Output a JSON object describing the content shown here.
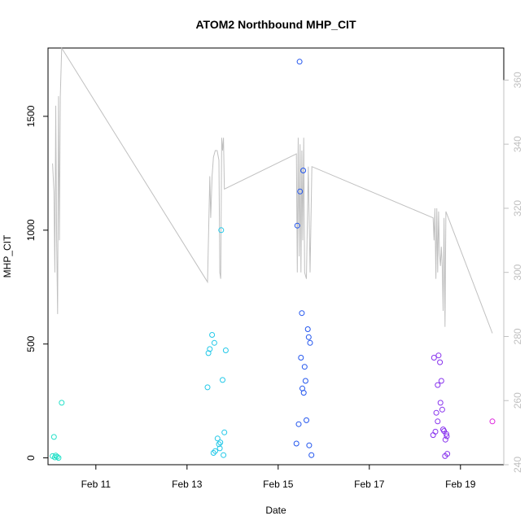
{
  "chart_data": {
    "type": "scatter",
    "title": "ATOM2 Northbound MHP_CIT",
    "xlabel": "Date",
    "ylabel": "MHP_CIT",
    "x_ticks": [
      "Feb 11",
      "Feb 13",
      "Feb 15",
      "Feb 17",
      "Feb 19"
    ],
    "x_tick_days": [
      11,
      13,
      15,
      17,
      19
    ],
    "xlim": [
      9.95,
      19.95
    ],
    "ylim": [
      -30,
      1800
    ],
    "y_ticks": [
      0,
      500,
      1000,
      1500
    ],
    "y2lim": [
      240,
      370
    ],
    "y2_ticks": [
      240,
      260,
      280,
      300,
      320,
      340,
      360
    ],
    "y2_color": "#c0c0c0",
    "grid": false,
    "legend": "none",
    "series": [
      {
        "color": "#22e0c8",
        "points": [
          {
            "x": 10.05,
            "y": 8
          },
          {
            "x": 10.08,
            "y": 92
          },
          {
            "x": 10.1,
            "y": 2
          },
          {
            "x": 10.12,
            "y": 10
          },
          {
            "x": 10.15,
            "y": 5
          },
          {
            "x": 10.18,
            "y": 0
          },
          {
            "x": 10.25,
            "y": 242
          }
        ]
      },
      {
        "color": "#22c8e8",
        "points": [
          {
            "x": 13.45,
            "y": 310
          },
          {
            "x": 13.47,
            "y": 460
          },
          {
            "x": 13.5,
            "y": 478
          },
          {
            "x": 13.55,
            "y": 540
          },
          {
            "x": 13.6,
            "y": 505
          },
          {
            "x": 13.58,
            "y": 22
          },
          {
            "x": 13.62,
            "y": 30
          },
          {
            "x": 13.67,
            "y": 85
          },
          {
            "x": 13.7,
            "y": 60
          },
          {
            "x": 13.72,
            "y": 42
          },
          {
            "x": 13.75,
            "y": 1000
          },
          {
            "x": 13.78,
            "y": 342
          },
          {
            "x": 13.8,
            "y": 12
          },
          {
            "x": 13.82,
            "y": 112
          },
          {
            "x": 13.85,
            "y": 472
          },
          {
            "x": 13.73,
            "y": 68
          }
        ]
      },
      {
        "color": "#2255ee",
        "points": [
          {
            "x": 15.4,
            "y": 63
          },
          {
            "x": 15.42,
            "y": 1020
          },
          {
            "x": 15.45,
            "y": 148
          },
          {
            "x": 15.47,
            "y": 1740
          },
          {
            "x": 15.48,
            "y": 1170
          },
          {
            "x": 15.5,
            "y": 440
          },
          {
            "x": 15.52,
            "y": 636
          },
          {
            "x": 15.53,
            "y": 305
          },
          {
            "x": 15.55,
            "y": 1262
          },
          {
            "x": 15.56,
            "y": 286
          },
          {
            "x": 15.58,
            "y": 400
          },
          {
            "x": 15.6,
            "y": 338
          },
          {
            "x": 15.62,
            "y": 165
          },
          {
            "x": 15.65,
            "y": 565
          },
          {
            "x": 15.67,
            "y": 530
          },
          {
            "x": 15.7,
            "y": 505
          },
          {
            "x": 15.68,
            "y": 55
          },
          {
            "x": 15.73,
            "y": 12
          }
        ]
      },
      {
        "color": "#8833ee",
        "points": [
          {
            "x": 18.4,
            "y": 100
          },
          {
            "x": 18.42,
            "y": 440
          },
          {
            "x": 18.45,
            "y": 115
          },
          {
            "x": 18.47,
            "y": 198
          },
          {
            "x": 18.5,
            "y": 320
          },
          {
            "x": 18.52,
            "y": 450
          },
          {
            "x": 18.5,
            "y": 160
          },
          {
            "x": 18.55,
            "y": 420
          },
          {
            "x": 18.56,
            "y": 242
          },
          {
            "x": 18.58,
            "y": 338
          },
          {
            "x": 18.6,
            "y": 212
          },
          {
            "x": 18.62,
            "y": 125
          },
          {
            "x": 18.64,
            "y": 118
          },
          {
            "x": 18.66,
            "y": 8
          },
          {
            "x": 18.67,
            "y": 80
          },
          {
            "x": 18.69,
            "y": 105
          },
          {
            "x": 18.71,
            "y": 18
          },
          {
            "x": 18.7,
            "y": 95
          }
        ]
      },
      {
        "color": "#dd22dd",
        "points": [
          {
            "x": 19.7,
            "y": 160
          }
        ]
      }
    ],
    "line_series": {
      "axis": "right",
      "color": "#c0c0c0",
      "points": [
        {
          "x": 10.05,
          "y": 334
        },
        {
          "x": 10.08,
          "y": 325
        },
        {
          "x": 10.1,
          "y": 300
        },
        {
          "x": 10.12,
          "y": 352
        },
        {
          "x": 10.14,
          "y": 310
        },
        {
          "x": 10.16,
          "y": 287
        },
        {
          "x": 10.18,
          "y": 355
        },
        {
          "x": 10.2,
          "y": 310
        },
        {
          "x": 10.22,
          "y": 355
        },
        {
          "x": 10.25,
          "y": 370
        },
        {
          "x": 13.45,
          "y": 297
        },
        {
          "x": 13.5,
          "y": 330
        },
        {
          "x": 13.52,
          "y": 317
        },
        {
          "x": 13.55,
          "y": 330
        },
        {
          "x": 13.58,
          "y": 336
        },
        {
          "x": 13.62,
          "y": 338
        },
        {
          "x": 13.66,
          "y": 338
        },
        {
          "x": 13.7,
          "y": 335
        },
        {
          "x": 13.72,
          "y": 300
        },
        {
          "x": 13.74,
          "y": 298
        },
        {
          "x": 13.76,
          "y": 342
        },
        {
          "x": 13.78,
          "y": 338
        },
        {
          "x": 13.8,
          "y": 342
        },
        {
          "x": 13.82,
          "y": 326
        },
        {
          "x": 15.4,
          "y": 337
        },
        {
          "x": 15.42,
          "y": 300
        },
        {
          "x": 15.44,
          "y": 342
        },
        {
          "x": 15.46,
          "y": 305
        },
        {
          "x": 15.48,
          "y": 340
        },
        {
          "x": 15.5,
          "y": 300
        },
        {
          "x": 15.52,
          "y": 338
        },
        {
          "x": 15.54,
          "y": 310
        },
        {
          "x": 15.56,
          "y": 342
        },
        {
          "x": 15.58,
          "y": 300
        },
        {
          "x": 15.62,
          "y": 298
        },
        {
          "x": 15.66,
          "y": 333
        },
        {
          "x": 15.7,
          "y": 300
        },
        {
          "x": 15.74,
          "y": 333
        },
        {
          "x": 18.4,
          "y": 317
        },
        {
          "x": 18.42,
          "y": 310
        },
        {
          "x": 18.44,
          "y": 320
        },
        {
          "x": 18.46,
          "y": 298
        },
        {
          "x": 18.48,
          "y": 320
        },
        {
          "x": 18.5,
          "y": 300
        },
        {
          "x": 18.52,
          "y": 319
        },
        {
          "x": 18.54,
          "y": 306
        },
        {
          "x": 18.56,
          "y": 302
        },
        {
          "x": 18.58,
          "y": 308
        },
        {
          "x": 18.6,
          "y": 302
        },
        {
          "x": 18.62,
          "y": 288
        },
        {
          "x": 18.64,
          "y": 317
        },
        {
          "x": 18.66,
          "y": 283
        },
        {
          "x": 18.68,
          "y": 319
        },
        {
          "x": 19.7,
          "y": 281
        }
      ]
    }
  }
}
